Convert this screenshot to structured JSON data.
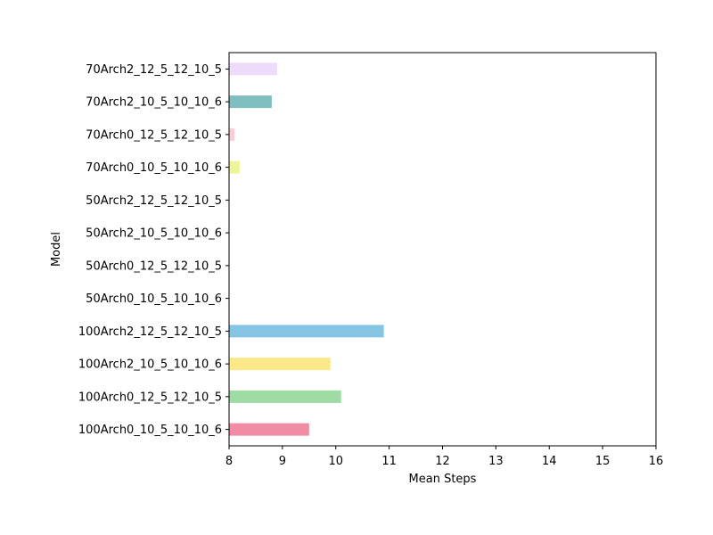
{
  "chart_data": {
    "type": "bar",
    "orientation": "horizontal",
    "title": "",
    "xlabel": "Mean Steps",
    "ylabel": "Model",
    "xlim": [
      8,
      16
    ],
    "xticks": [
      "8",
      "9",
      "10",
      "11",
      "12",
      "13",
      "14",
      "15",
      "16"
    ],
    "grid": false,
    "categories": [
      "100Arch0_10_5_10_10_6",
      "100Arch0_12_5_12_10_5",
      "100Arch2_10_5_10_10_6",
      "100Arch2_12_5_12_10_5",
      "50Arch0_10_5_10_10_6",
      "50Arch0_12_5_12_10_5",
      "50Arch2_10_5_10_10_6",
      "50Arch2_12_5_12_10_5",
      "70Arch0_10_5_10_10_6",
      "70Arch0_12_5_12_10_5",
      "70Arch2_10_5_10_10_6",
      "70Arch2_12_5_12_10_5"
    ],
    "values": [
      9.5,
      10.1,
      9.9,
      10.9,
      8.0,
      8.0,
      8.0,
      8.0,
      8.2,
      8.1,
      8.8,
      8.9
    ],
    "colors": [
      "#f08ca4",
      "#9edca4",
      "#fbe989",
      "#86c4e4",
      "#ffffff",
      "#ffffff",
      "#ffffff",
      "#ffffff",
      "#ecf59a",
      "#f8cdd6",
      "#7fbfbf",
      "#efdcfb"
    ]
  }
}
